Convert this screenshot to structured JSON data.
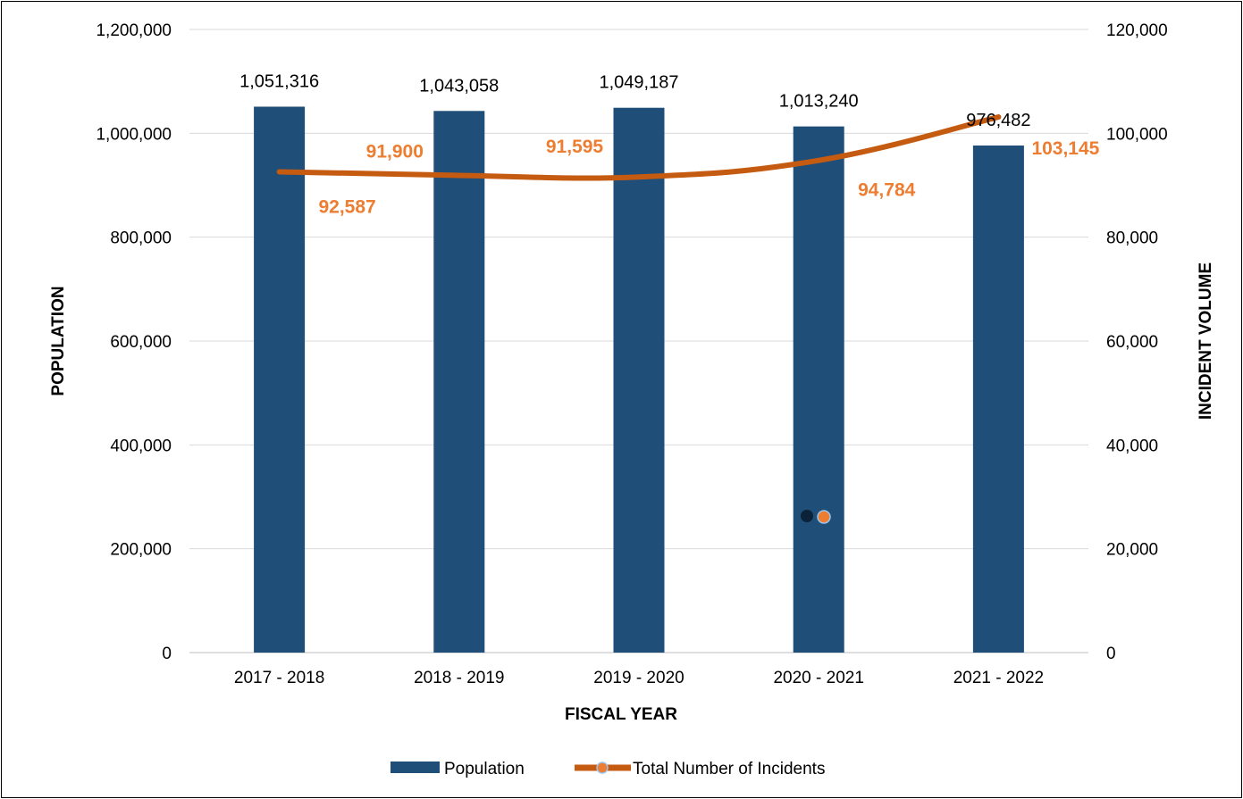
{
  "chart_data": {
    "type": "bar",
    "title": "",
    "xlabel": "FISCAL YEAR",
    "ylabel": "POPULATION",
    "y2label": "INCIDENT VOLUME",
    "categories": [
      "2017 - 2018",
      "2018 - 2019",
      "2019 - 2020",
      "2020 - 2021",
      "2021 - 2022"
    ],
    "ylim": [
      0,
      1200000
    ],
    "y2lim": [
      0,
      120000
    ],
    "yticks": [
      "0",
      "200,000",
      "400,000",
      "600,000",
      "800,000",
      "1,000,000",
      "1,200,000"
    ],
    "y2ticks": [
      "0",
      "20,000",
      "40,000",
      "60,000",
      "80,000",
      "100,000",
      "120,000"
    ],
    "grid": true,
    "legend_position": "bottom",
    "series": [
      {
        "name": "Population",
        "type": "bar",
        "axis": "left",
        "color": "#1F4E79",
        "values": [
          1051316,
          1043058,
          1049187,
          1013240,
          976482
        ],
        "labels": [
          "1,051,316",
          "1,043,058",
          "1,049,187",
          "1,013,240",
          "976,482"
        ]
      },
      {
        "name": "Total Number of Incidents",
        "type": "line",
        "axis": "right",
        "color": "#C55A11",
        "label_color": "#ED7D31",
        "values": [
          92587,
          91900,
          91595,
          94784,
          103145
        ],
        "labels": [
          "92,587",
          "91,900",
          "91,595",
          "94,784",
          "103,145"
        ]
      }
    ]
  }
}
